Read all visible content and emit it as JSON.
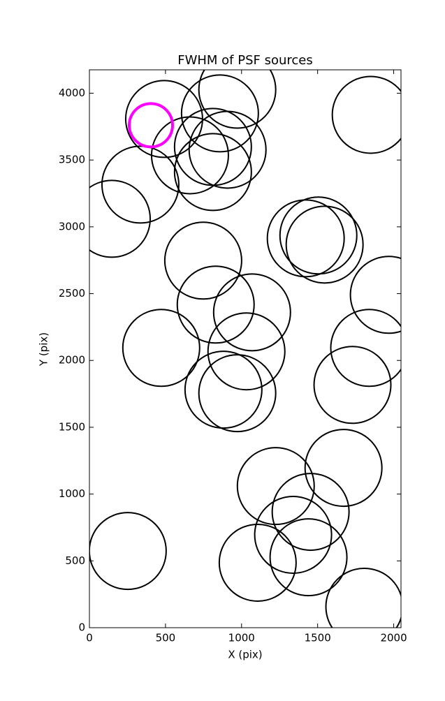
{
  "chart_data": {
    "type": "scatter",
    "title": "FWHM of PSF sources",
    "x_label": "X (pix)",
    "y_label": "Y (pix)",
    "xlim": [
      0,
      2048
    ],
    "ylim": [
      0,
      4175
    ],
    "xticks": [
      0,
      500,
      1000,
      1500,
      2000
    ],
    "yticks": [
      0,
      500,
      1000,
      1500,
      2000,
      2500,
      3000,
      3500,
      4000
    ],
    "grid": false,
    "series": [
      {
        "color": "#000000",
        "x": [
          491,
          858,
          972,
          1849,
          661,
          812,
          908,
          812,
          335,
          147,
          1422,
          1505,
          1546,
          748,
          1968,
          830,
          1069,
          472,
          1839,
          1032,
          1729,
          881,
          972,
          1670,
          1225,
          1454,
          1339,
          252,
          1106,
          1440,
          1807
        ],
        "values": [
          3807,
          3849,
          4026,
          3838,
          3535,
          3598,
          3577,
          3410,
          3316,
          3060,
          2914,
          2935,
          2867,
          2747,
          2491,
          2418,
          2360,
          2094,
          2094,
          2068,
          1817,
          1781,
          1755,
          1196,
          1060,
          867,
          695,
          574,
          486,
          527,
          157
        ]
      },
      {
        "color": "#ff00ff",
        "x": [
          404
        ],
        "values": [
          3760
        ]
      }
    ]
  }
}
